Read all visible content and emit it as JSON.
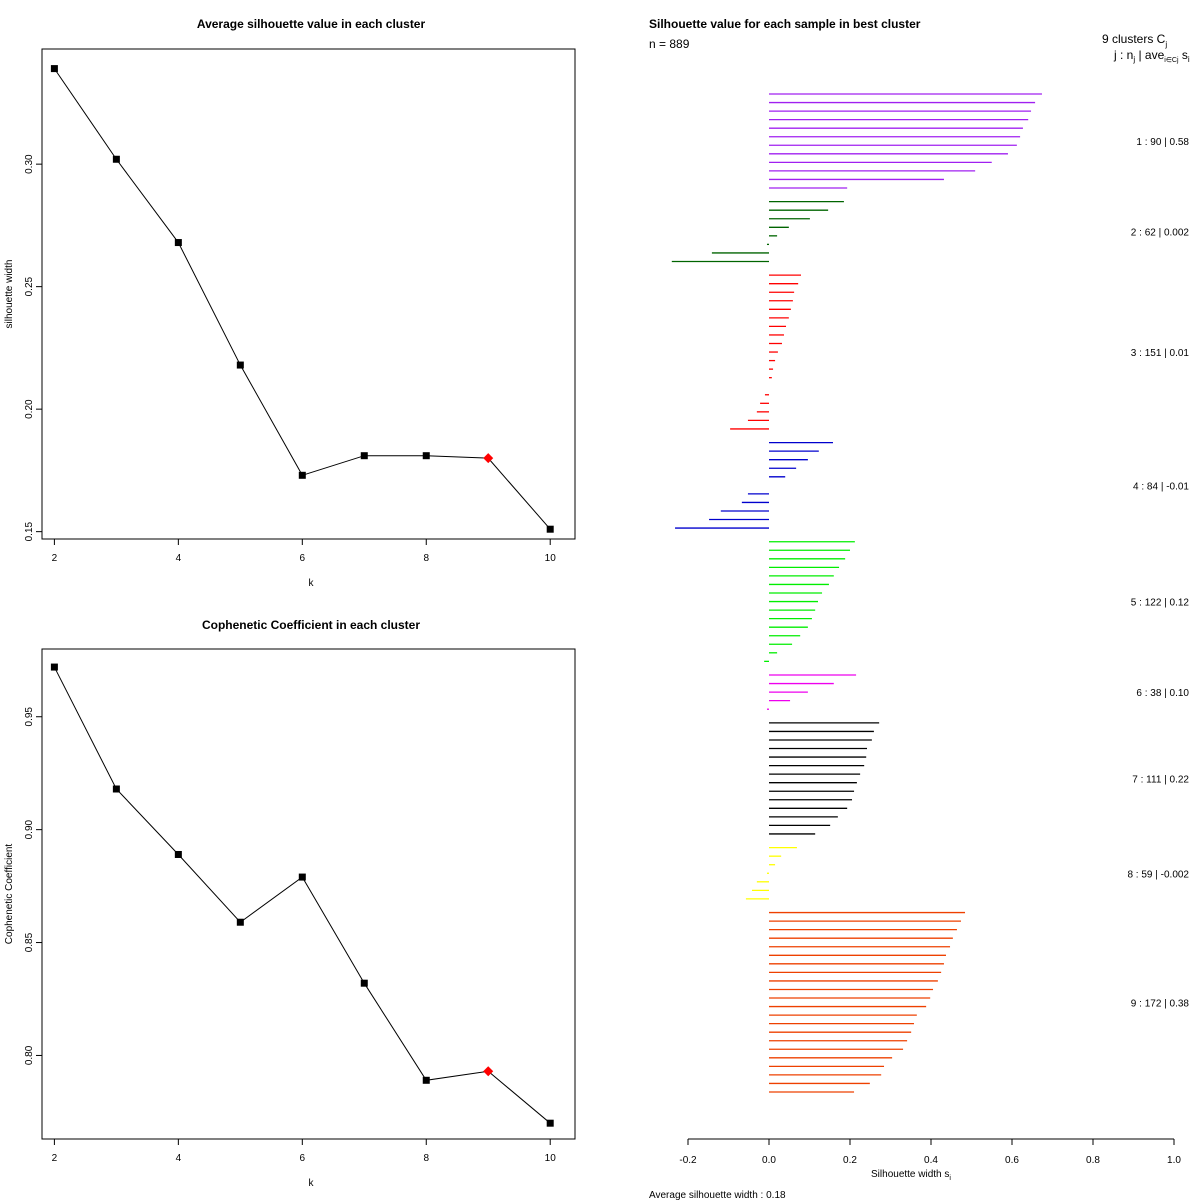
{
  "chart_data": [
    {
      "type": "line",
      "title": "Average silhouette value in each cluster",
      "xlabel": "k",
      "ylabel": "silhouette width",
      "x": [
        2,
        3,
        4,
        5,
        6,
        7,
        8,
        9,
        10
      ],
      "values": [
        0.339,
        0.302,
        0.268,
        0.218,
        0.173,
        0.181,
        0.181,
        0.18,
        0.151
      ],
      "highlight_x": 9,
      "highlight_color": "#ff0000",
      "x_ticks": [
        "2",
        "4",
        "6",
        "8",
        "10"
      ],
      "y_ticks": [
        "0.15",
        "0.20",
        "0.25",
        "0.30"
      ],
      "xlim": [
        1.8,
        10.4
      ],
      "ylim": [
        0.147,
        0.347
      ],
      "grid": false
    },
    {
      "type": "line",
      "title": "Cophenetic Coefficient in each cluster",
      "xlabel": "k",
      "ylabel": "Cophenetic Coefficient",
      "x": [
        2,
        3,
        4,
        5,
        6,
        7,
        8,
        9,
        10
      ],
      "values": [
        0.972,
        0.918,
        0.889,
        0.859,
        0.879,
        0.832,
        0.789,
        0.793,
        0.77
      ],
      "highlight_x": 9,
      "highlight_color": "#ff0000",
      "x_ticks": [
        "2",
        "4",
        "6",
        "8",
        "10"
      ],
      "y_ticks": [
        "0.80",
        "0.85",
        "0.90",
        "0.95"
      ],
      "xlim": [
        1.8,
        10.4
      ],
      "ylim": [
        0.763,
        0.98
      ],
      "grid": false
    },
    {
      "type": "bar",
      "orientation": "horizontal",
      "title": "Silhouette value for each sample in best cluster",
      "n_label": "n = 889",
      "xlabel": "Silhouette width s",
      "xlabel_sub": "i",
      "x_ticks": [
        "-0.2",
        "0.0",
        "0.2",
        "0.4",
        "0.6",
        "0.8",
        "1.0"
      ],
      "xlim": [
        -0.2,
        1.0
      ],
      "legend_header": "9  clusters  C",
      "legend_header_sub": "j",
      "legend_subheader": "j :  n",
      "legend_subheader_sub": "j",
      "legend_subheader_tail": " | ave",
      "legend_subheader_tail_sub": "i∈Cj",
      "legend_subheader_end": "  s",
      "legend_subheader_end_sub": "i",
      "footer": "Average silhouette width :  0.18",
      "clusters": [
        {
          "id": 1,
          "n": 90,
          "avg": "0.58",
          "label": "1 :   90  |  0.58",
          "color": "#a020f0",
          "values": [
            0.674,
            0.657,
            0.647,
            0.64,
            0.627,
            0.62,
            0.612,
            0.59,
            0.55,
            0.509,
            0.432,
            0.193
          ]
        },
        {
          "id": 2,
          "n": 62,
          "avg": "0.002",
          "label": "2 :   62  |  0.002",
          "color": "#006400",
          "values": [
            0.185,
            0.146,
            0.101,
            0.049,
            0.02,
            -0.005,
            -0.141,
            -0.24
          ]
        },
        {
          "id": 3,
          "n": 151,
          "avg": "0.01",
          "label": "3 :   151  |  0.01",
          "color": "#ff0000",
          "values": [
            0.079,
            0.072,
            0.062,
            0.059,
            0.054,
            0.049,
            0.042,
            0.037,
            0.032,
            0.022,
            0.015,
            0.01,
            0.007,
            0,
            -0.01,
            -0.022,
            -0.03,
            -0.052,
            -0.096
          ]
        },
        {
          "id": 4,
          "n": 84,
          "avg": "-0.01",
          "label": "4 :   84  |  -0.01",
          "color": "#0000cd",
          "values": [
            0.158,
            0.123,
            0.096,
            0.067,
            0.04,
            0,
            -0.052,
            -0.067,
            -0.119,
            -0.148,
            -0.232
          ]
        },
        {
          "id": 5,
          "n": 122,
          "avg": "0.12",
          "label": "5 :   122  |  0.12",
          "color": "#00ee00",
          "values": [
            0.212,
            0.2,
            0.188,
            0.173,
            0.16,
            0.148,
            0.131,
            0.121,
            0.114,
            0.106,
            0.096,
            0.077,
            0.057,
            0.02,
            -0.012
          ]
        },
        {
          "id": 6,
          "n": 38,
          "avg": "0.10",
          "label": "6 :   38  |  0.10",
          "color": "#ee00ee",
          "values": [
            0.215,
            0.16,
            0.096,
            0.052,
            -0.005
          ]
        },
        {
          "id": 7,
          "n": 111,
          "avg": "0.22",
          "label": "7 :   111  |  0.22",
          "color": "#000000",
          "values": [
            0.272,
            0.259,
            0.254,
            0.242,
            0.24,
            0.235,
            0.225,
            0.217,
            0.21,
            0.205,
            0.193,
            0.17,
            0.151,
            0.114
          ]
        },
        {
          "id": 8,
          "n": 59,
          "avg": "-0.002",
          "label": "8 :   59  |  -0.002",
          "color": "#ffff00",
          "values": [
            0.069,
            0.03,
            0.015,
            -0.005,
            -0.03,
            -0.042,
            -0.057
          ]
        },
        {
          "id": 9,
          "n": 172,
          "avg": "0.38",
          "label": "9 :   172  |  0.38",
          "color": "#ee4000",
          "values": [
            0.484,
            0.474,
            0.464,
            0.454,
            0.447,
            0.437,
            0.432,
            0.425,
            0.417,
            0.405,
            0.398,
            0.388,
            0.365,
            0.358,
            0.351,
            0.341,
            0.331,
            0.304,
            0.284,
            0.277,
            0.249,
            0.21
          ]
        }
      ]
    }
  ]
}
